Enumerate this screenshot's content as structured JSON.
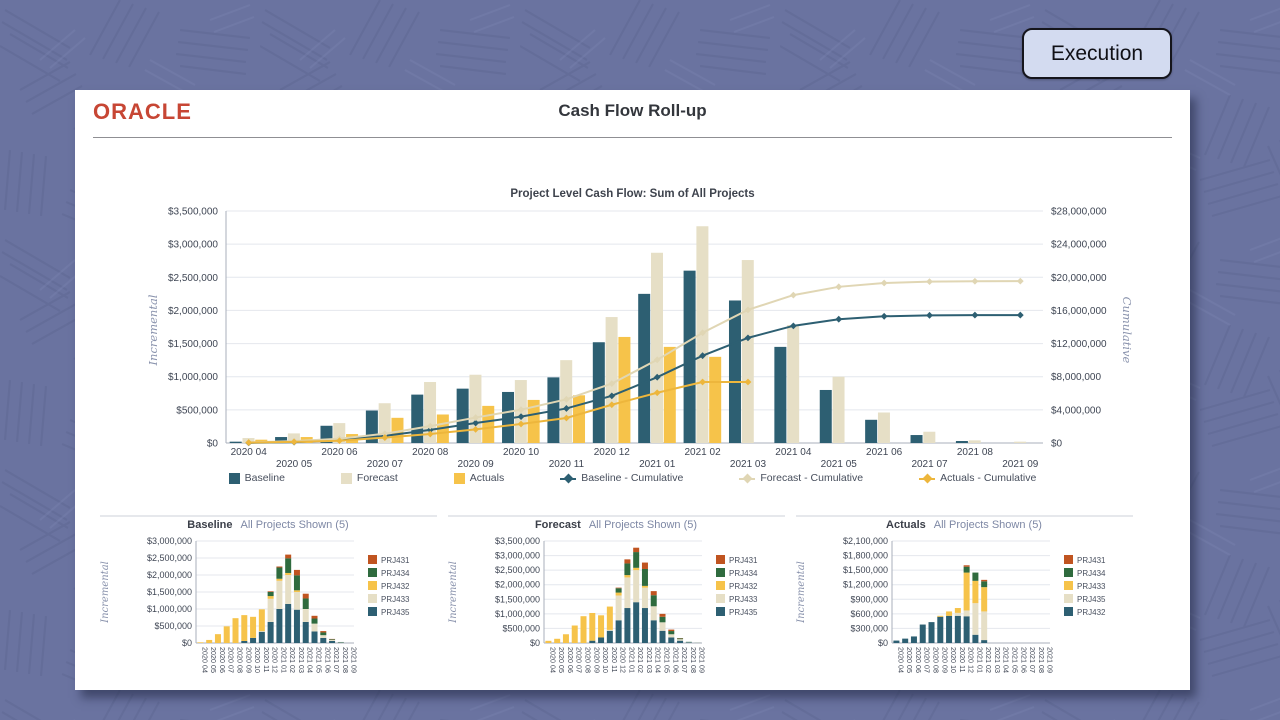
{
  "execution_button": {
    "label": "Execution"
  },
  "header": {
    "brand": "ORACLE",
    "title": "Cash Flow Roll-up"
  },
  "palette": {
    "teal": "#2d5f72",
    "beige": "#e6dfc6",
    "beige_line": "#e0d6b4",
    "gold": "#f6c34a",
    "gold_line": "#edb63c",
    "green": "#2f6b3e",
    "rust": "#c05420",
    "brand_red": "#c74634",
    "grid": "#e4e7ed",
    "axis_line": "#a9afbb",
    "tick_text": "#3f4654",
    "muted_label": "#8a93ad",
    "subtitle_text": "#7e88a5"
  },
  "main_legend": [
    {
      "label": "Baseline",
      "marker": "square",
      "color": "teal"
    },
    {
      "label": "Forecast",
      "marker": "square",
      "color": "beige"
    },
    {
      "label": "Actuals",
      "marker": "square",
      "color": "gold"
    },
    {
      "label": "Baseline - Cumulative",
      "marker": "diamond",
      "color": "teal"
    },
    {
      "label": "Forecast - Cumulative",
      "marker": "diamond",
      "color": "beige_line"
    },
    {
      "label": "Actuals - Cumulative",
      "marker": "diamond",
      "color": "gold_line"
    }
  ],
  "chart_data": [
    {
      "id": "main",
      "type": "bar",
      "subtype": "grouped-bars-with-cumulative-lines",
      "title": "Project Level Cash Flow: Sum of All Projects",
      "categories": [
        "2020 04",
        "2020 05",
        "2020 06",
        "2020 07",
        "2020 08",
        "2020 09",
        "2020 10",
        "2020 11",
        "2020 12",
        "2021 01",
        "2021 02",
        "2021 03",
        "2021 04",
        "2021 05",
        "2021 06",
        "2021 07",
        "2021 08",
        "2021 09"
      ],
      "left_axis": {
        "label": "Incremental",
        "min": 0,
        "max": 3500000,
        "step": 500000
      },
      "right_axis": {
        "label": "Cumulative",
        "min": 0,
        "max": 28000000,
        "step": 4000000
      },
      "bar_series": [
        {
          "name": "Baseline",
          "color": "teal",
          "values": [
            20000,
            90000,
            260000,
            490000,
            730000,
            820000,
            770000,
            990000,
            1520000,
            2250000,
            2600000,
            2150000,
            1450000,
            800000,
            350000,
            120000,
            30000,
            0
          ]
        },
        {
          "name": "Forecast",
          "color": "beige",
          "values": [
            75000,
            145000,
            300000,
            600000,
            920000,
            1030000,
            950000,
            1250000,
            1900000,
            2870000,
            3270000,
            2760000,
            1780000,
            1000000,
            460000,
            170000,
            40000,
            20000
          ]
        },
        {
          "name": "Actuals",
          "color": "gold",
          "values": [
            50000,
            90000,
            135000,
            380000,
            430000,
            560000,
            650000,
            720000,
            1600000,
            1450000,
            1300000,
            null,
            null,
            null,
            null,
            null,
            null,
            null
          ]
        }
      ],
      "line_series": [
        {
          "name": "Baseline - Cumulative",
          "color": "teal",
          "values": [
            20000,
            110000,
            370000,
            860000,
            1590000,
            2410000,
            3180000,
            4170000,
            5690000,
            7940000,
            10540000,
            12690000,
            14140000,
            14940000,
            15290000,
            15410000,
            15440000,
            15440000
          ]
        },
        {
          "name": "Forecast - Cumulative",
          "color": "beige_line",
          "values": [
            75000,
            220000,
            520000,
            1120000,
            2040000,
            3070000,
            4020000,
            5270000,
            7170000,
            10040000,
            13310000,
            16070000,
            17850000,
            18850000,
            19310000,
            19480000,
            19520000,
            19540000
          ]
        },
        {
          "name": "Actuals - Cumulative",
          "color": "gold_line",
          "values": [
            50000,
            140000,
            275000,
            655000,
            1085000,
            1645000,
            2295000,
            3015000,
            4615000,
            6065000,
            7365000,
            7365000,
            null,
            null,
            null,
            null,
            null,
            null
          ]
        }
      ]
    },
    {
      "id": "baseline-small",
      "type": "bar",
      "subtype": "stacked",
      "title": "Baseline",
      "subtitle": "All Projects Shown (5)",
      "axis": {
        "label": "Incremental",
        "min": 0,
        "max": 3000000,
        "step": 500000
      },
      "categories": [
        "2020 04",
        "2020 05",
        "2020 06",
        "2020 07",
        "2020 08",
        "2020 09",
        "2020 10",
        "2020 11",
        "2020 12",
        "2021 01",
        "2021 02",
        "2021 03",
        "2021 04",
        "2021 05",
        "2021 06",
        "2021 07",
        "2021 08",
        "2021 09"
      ],
      "series": [
        {
          "name": "PRJ435",
          "color": "teal",
          "values": [
            0,
            0,
            0,
            0,
            0,
            60000,
            150000,
            330000,
            620000,
            1000000,
            1150000,
            980000,
            620000,
            340000,
            150000,
            60000,
            10000,
            0
          ]
        },
        {
          "name": "PRJ433",
          "color": "beige",
          "values": [
            0,
            0,
            0,
            0,
            0,
            0,
            0,
            20000,
            680000,
            830000,
            850000,
            520000,
            380000,
            230000,
            80000,
            30000,
            10000,
            0
          ]
        },
        {
          "name": "PRJ432",
          "color": "gold",
          "values": [
            20000,
            90000,
            260000,
            490000,
            730000,
            760000,
            620000,
            640000,
            80000,
            60000,
            60000,
            50000,
            0,
            0,
            0,
            0,
            0,
            0
          ]
        },
        {
          "name": "PRJ434",
          "color": "green",
          "values": [
            0,
            0,
            0,
            0,
            0,
            0,
            0,
            0,
            120000,
            330000,
            430000,
            440000,
            310000,
            150000,
            80000,
            20000,
            10000,
            0
          ]
        },
        {
          "name": "PRJ431",
          "color": "rust",
          "values": [
            0,
            0,
            0,
            0,
            0,
            0,
            0,
            0,
            20000,
            30000,
            110000,
            160000,
            140000,
            80000,
            40000,
            10000,
            0,
            0
          ]
        }
      ],
      "legend_order": [
        "PRJ431",
        "PRJ434",
        "PRJ432",
        "PRJ433",
        "PRJ435"
      ]
    },
    {
      "id": "forecast-small",
      "type": "bar",
      "subtype": "stacked",
      "title": "Forecast",
      "subtitle": "All Projects Shown (5)",
      "axis": {
        "label": "Incremental",
        "min": 0,
        "max": 3500000,
        "step": 500000
      },
      "categories": [
        "2020 04",
        "2020 05",
        "2020 06",
        "2020 07",
        "2020 08",
        "2020 09",
        "2020 10",
        "2020 11",
        "2020 12",
        "2021 01",
        "2021 02",
        "2021 03",
        "2021 04",
        "2021 05",
        "2021 06",
        "2021 07",
        "2021 08",
        "2021 09"
      ],
      "series": [
        {
          "name": "PRJ435",
          "color": "teal",
          "values": [
            0,
            0,
            0,
            0,
            0,
            80000,
            190000,
            420000,
            780000,
            1200000,
            1400000,
            1200000,
            780000,
            420000,
            190000,
            80000,
            20000,
            10000
          ]
        },
        {
          "name": "PRJ433",
          "color": "beige",
          "values": [
            0,
            0,
            0,
            0,
            0,
            0,
            0,
            30000,
            850000,
            1050000,
            1100000,
            700000,
            480000,
            290000,
            110000,
            50000,
            10000,
            10000
          ]
        },
        {
          "name": "PRJ432",
          "color": "gold",
          "values": [
            75000,
            145000,
            300000,
            600000,
            920000,
            950000,
            760000,
            800000,
            100000,
            80000,
            80000,
            60000,
            0,
            0,
            0,
            0,
            0,
            0
          ]
        },
        {
          "name": "PRJ434",
          "color": "green",
          "values": [
            0,
            0,
            0,
            0,
            0,
            0,
            0,
            0,
            150000,
            400000,
            540000,
            580000,
            380000,
            190000,
            110000,
            30000,
            10000,
            0
          ]
        },
        {
          "name": "PRJ431",
          "color": "rust",
          "values": [
            0,
            0,
            0,
            0,
            0,
            0,
            0,
            0,
            20000,
            140000,
            150000,
            220000,
            140000,
            100000,
            50000,
            10000,
            0,
            0
          ]
        }
      ],
      "legend_order": [
        "PRJ431",
        "PRJ434",
        "PRJ432",
        "PRJ433",
        "PRJ435"
      ]
    },
    {
      "id": "actuals-small",
      "type": "bar",
      "subtype": "stacked",
      "title": "Actuals",
      "subtitle": "All Projects Shown (5)",
      "axis": {
        "label": "Incremental",
        "min": 0,
        "max": 2100000,
        "step": 300000
      },
      "categories": [
        "2020 04",
        "2020 05",
        "2020 06",
        "2020 07",
        "2020 08",
        "2020 09",
        "2020 10",
        "2020 11",
        "2020 12",
        "2021 01",
        "2021 02",
        "2021 03",
        "2021 04",
        "2021 05",
        "2021 06",
        "2021 07",
        "2021 08",
        "2021 09"
      ],
      "series": [
        {
          "name": "PRJ432",
          "color": "teal",
          "values": [
            50000,
            90000,
            135000,
            380000,
            430000,
            540000,
            560000,
            560000,
            550000,
            170000,
            60000,
            0,
            0,
            0,
            0,
            0,
            0,
            0
          ]
        },
        {
          "name": "PRJ435",
          "color": "beige",
          "values": [
            0,
            0,
            0,
            0,
            0,
            0,
            0,
            60000,
            120000,
            650000,
            590000,
            0,
            0,
            0,
            0,
            0,
            0,
            0
          ]
        },
        {
          "name": "PRJ433",
          "color": "gold",
          "values": [
            0,
            0,
            0,
            0,
            0,
            20000,
            90000,
            100000,
            780000,
            460000,
            500000,
            0,
            0,
            0,
            0,
            0,
            0,
            0
          ]
        },
        {
          "name": "PRJ434",
          "color": "green",
          "values": [
            0,
            0,
            0,
            0,
            0,
            0,
            0,
            0,
            120000,
            170000,
            120000,
            0,
            0,
            0,
            0,
            0,
            0,
            0
          ]
        },
        {
          "name": "PRJ431",
          "color": "rust",
          "values": [
            0,
            0,
            0,
            0,
            0,
            0,
            0,
            0,
            30000,
            0,
            30000,
            0,
            0,
            0,
            0,
            0,
            0,
            0
          ]
        }
      ],
      "legend_order": [
        "PRJ431",
        "PRJ434",
        "PRJ433",
        "PRJ435",
        "PRJ432"
      ]
    }
  ]
}
